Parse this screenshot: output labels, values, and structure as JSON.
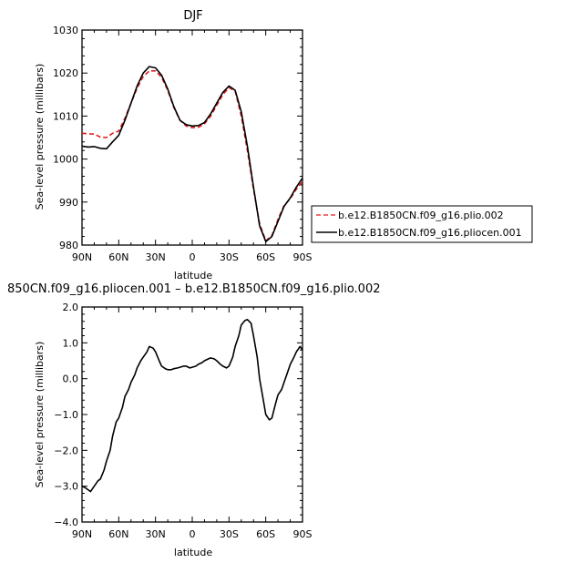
{
  "chart_data": [
    {
      "type": "line",
      "title": "DJF",
      "xlabel": "latitude",
      "ylabel": "Sea-level pressure (millibars)",
      "x_direction": "90N to 90S",
      "xlim": [
        90,
        -90
      ],
      "ylim": [
        980,
        1030
      ],
      "xticks": [
        90,
        60,
        30,
        0,
        -30,
        -60,
        -90
      ],
      "xtick_labels": [
        "90N",
        "60N",
        "30N",
        "0",
        "30S",
        "60S",
        "90S"
      ],
      "yticks": [
        980,
        990,
        1000,
        1010,
        1020,
        1030
      ],
      "ytick_labels": [
        "980",
        "990",
        "1000",
        "1010",
        "1020",
        "1030"
      ],
      "grid": false,
      "legend_position": "right, outside the plot",
      "series": [
        {
          "name": "b.e12.B1850CN.f09_g16.plio.002",
          "color": "#e41a1c",
          "style": "dashed",
          "x": [
            90,
            85,
            80,
            75,
            70,
            65,
            60,
            55,
            50,
            45,
            40,
            35,
            30,
            25,
            20,
            15,
            10,
            5,
            0,
            -5,
            -10,
            -15,
            -20,
            -25,
            -30,
            -35,
            -40,
            -45,
            -50,
            -55,
            -60,
            -65,
            -70,
            -75,
            -80,
            -85,
            -90
          ],
          "values": [
            1006,
            1005.9,
            1005.8,
            1005.1,
            1005.0,
            1006.0,
            1006.5,
            1009.5,
            1013.0,
            1016.5,
            1019.2,
            1020.5,
            1020.5,
            1019.0,
            1016.0,
            1012.0,
            1009.0,
            1007.7,
            1007.3,
            1007.4,
            1008.2,
            1010.0,
            1012.5,
            1015.0,
            1016.6,
            1015.8,
            1010.0,
            1002.0,
            993.0,
            985.0,
            981.0,
            982.2,
            986.0,
            989.2,
            990.8,
            993.0,
            994.8
          ]
        },
        {
          "name": "b.e12.B1850CN.f09_g16.pliocen.001",
          "color": "#000000",
          "style": "solid",
          "x": [
            90,
            85,
            80,
            75,
            70,
            65,
            60,
            55,
            50,
            45,
            40,
            35,
            30,
            25,
            20,
            15,
            10,
            5,
            0,
            -5,
            -10,
            -15,
            -20,
            -25,
            -30,
            -35,
            -40,
            -45,
            -50,
            -55,
            -60,
            -65,
            -70,
            -75,
            -80,
            -85,
            -90
          ],
          "values": [
            1003,
            1002.8,
            1002.9,
            1002.5,
            1002.4,
            1004.0,
            1005.5,
            1009.0,
            1013.0,
            1017.0,
            1020.0,
            1021.5,
            1021.2,
            1019.5,
            1016.3,
            1012.2,
            1009.0,
            1008.0,
            1007.7,
            1007.8,
            1008.5,
            1010.5,
            1013.0,
            1015.5,
            1017.0,
            1016.0,
            1011.0,
            1003.0,
            993.5,
            984.5,
            980.8,
            982.0,
            985.5,
            989.0,
            991.0,
            993.5,
            995.6
          ]
        }
      ]
    },
    {
      "type": "line",
      "title": "850CN.f09_g16.pliocen.001 – b.e12.B1850CN.f09_g16.plio.002",
      "xlabel": "latitude",
      "ylabel": "Sea-level pressure (millibars)",
      "x_direction": "90N to 90S",
      "xlim": [
        90,
        -90
      ],
      "ylim": [
        -4.0,
        2.0
      ],
      "xticks": [
        90,
        60,
        30,
        0,
        -30,
        -60,
        -90
      ],
      "xtick_labels": [
        "90N",
        "60N",
        "30N",
        "0",
        "30S",
        "60S",
        "90S"
      ],
      "yticks": [
        -4.0,
        -3.0,
        -2.0,
        -1.0,
        0.0,
        1.0,
        2.0
      ],
      "ytick_labels": [
        "−4.0",
        "−3.0",
        "−2.0",
        "−1.0",
        "0.0",
        "1.0",
        "2.0"
      ],
      "grid": false,
      "series": [
        {
          "color": "#000000",
          "style": "solid",
          "x": [
            90,
            87,
            85,
            83,
            80,
            77,
            75,
            72,
            70,
            67,
            65,
            62,
            60,
            57,
            55,
            52,
            50,
            47,
            45,
            42,
            40,
            37,
            35,
            32,
            30,
            27,
            25,
            22,
            20,
            17,
            15,
            12,
            10,
            7,
            5,
            2,
            0,
            -3,
            -5,
            -8,
            -10,
            -13,
            -15,
            -18,
            -20,
            -23,
            -25,
            -28,
            -30,
            -33,
            -35,
            -38,
            -40,
            -43,
            -45,
            -48,
            -50,
            -53,
            -55,
            -58,
            -60,
            -63,
            -65,
            -68,
            -70,
            -73,
            -75,
            -78,
            -80,
            -83,
            -85,
            -88,
            -90
          ],
          "values": [
            -3.0,
            -3.05,
            -3.1,
            -3.15,
            -3.0,
            -2.85,
            -2.8,
            -2.55,
            -2.3,
            -2.0,
            -1.6,
            -1.2,
            -1.1,
            -0.8,
            -0.5,
            -0.3,
            -0.1,
            0.1,
            0.3,
            0.5,
            0.6,
            0.75,
            0.9,
            0.85,
            0.75,
            0.5,
            0.35,
            0.28,
            0.25,
            0.25,
            0.28,
            0.3,
            0.32,
            0.35,
            0.35,
            0.3,
            0.32,
            0.35,
            0.4,
            0.45,
            0.5,
            0.55,
            0.58,
            0.55,
            0.5,
            0.4,
            0.35,
            0.3,
            0.35,
            0.6,
            0.9,
            1.2,
            1.5,
            1.62,
            1.65,
            1.55,
            1.2,
            0.6,
            0.0,
            -0.6,
            -1.0,
            -1.15,
            -1.1,
            -0.7,
            -0.45,
            -0.3,
            -0.1,
            0.2,
            0.4,
            0.6,
            0.75,
            0.9,
            0.8
          ]
        }
      ]
    }
  ]
}
